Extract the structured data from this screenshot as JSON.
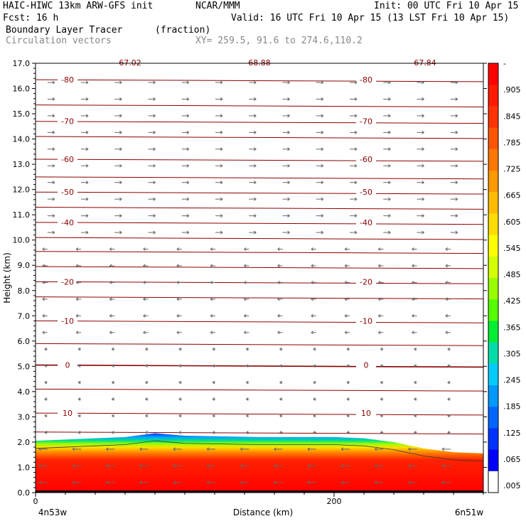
{
  "header": {
    "title_left": "HAIC-HIWC 13km ARW-GFS init",
    "title_center": "NCAR/MMM",
    "init": "Init: 00 UTC Fri 10 Apr 15",
    "fcst": "Fcst:   16 h",
    "valid": "Valid: 16 UTC Fri 10 Apr 15 (13 LST Fri 10 Apr 15)",
    "field": "Boundary Layer Tracer",
    "field_units": "(fraction)",
    "overlay": "Circulation vectors",
    "xy": "XY= 259.5, 91.6 to 274.6,110.2"
  },
  "chart_data": {
    "type": "heatmap",
    "xlabel": "Distance (km)",
    "ylabel": "Height (km)",
    "xlim": [
      0,
      300
    ],
    "ylim": [
      0,
      17
    ],
    "x_ticks": [
      0,
      200
    ],
    "x_end_labels": [
      "4n53w",
      "6n51w"
    ],
    "y_ticks": [
      "0.0",
      "1.0",
      "2.0",
      "3.0",
      "4.0",
      "5.0",
      "6.0",
      "7.0",
      "8.0",
      "9.0",
      "10.0",
      "11.0",
      "12.0",
      "13.0",
      "14.0",
      "15.0",
      "16.0",
      "17.0"
    ],
    "top_labels": [
      "67.02",
      "68.88",
      "67.84"
    ],
    "isotherm_labels": [
      {
        "value": "-80",
        "height": 16.35
      },
      {
        "value": "-70",
        "height": 14.7
      },
      {
        "value": "-60",
        "height": 13.2
      },
      {
        "value": "-50",
        "height": 11.9
      },
      {
        "value": "-40",
        "height": 10.7
      },
      {
        "value": "-20",
        "height": 8.35
      },
      {
        "value": "-10",
        "height": 6.8
      },
      {
        "value": "0",
        "height": 5.05
      },
      {
        "value": "10",
        "height": 3.15
      }
    ],
    "isotherm_heights": [
      16.35,
      15.35,
      14.7,
      14.1,
      13.2,
      12.5,
      11.9,
      11.3,
      10.7,
      10.1,
      9.55,
      8.95,
      8.35,
      7.75,
      6.8,
      5.9,
      5.05,
      4.1,
      3.15,
      2.4
    ],
    "tracer_top_profile": [
      {
        "x": 0,
        "z": 2.05
      },
      {
        "x": 20,
        "z": 2.1
      },
      {
        "x": 60,
        "z": 2.2
      },
      {
        "x": 80,
        "z": 2.35
      },
      {
        "x": 100,
        "z": 2.25
      },
      {
        "x": 150,
        "z": 2.2
      },
      {
        "x": 200,
        "z": 2.2
      },
      {
        "x": 220,
        "z": 2.15
      },
      {
        "x": 240,
        "z": 2.0
      },
      {
        "x": 260,
        "z": 1.75
      },
      {
        "x": 280,
        "z": 1.6
      },
      {
        "x": 300,
        "z": 1.55
      }
    ],
    "colorbar": {
      "labels": [
        "-",
        ".905",
        ".845",
        ".785",
        ".725",
        ".665",
        ".605",
        ".545",
        ".485",
        ".425",
        ".365",
        ".305",
        ".245",
        ".185",
        ".125",
        ".065",
        ".005"
      ],
      "colors": [
        "#ff0000",
        "#ff1a00",
        "#ff3300",
        "#ff5500",
        "#ff7700",
        "#ff9900",
        "#ffbb00",
        "#ffdd00",
        "#ffff00",
        "#d4ff00",
        "#99ff00",
        "#55ff00",
        "#00ee33",
        "#00ddaa",
        "#00ccff",
        "#0099ff",
        "#0066ff",
        "#0033ff",
        "#0000ff",
        "#ffffff"
      ]
    }
  }
}
